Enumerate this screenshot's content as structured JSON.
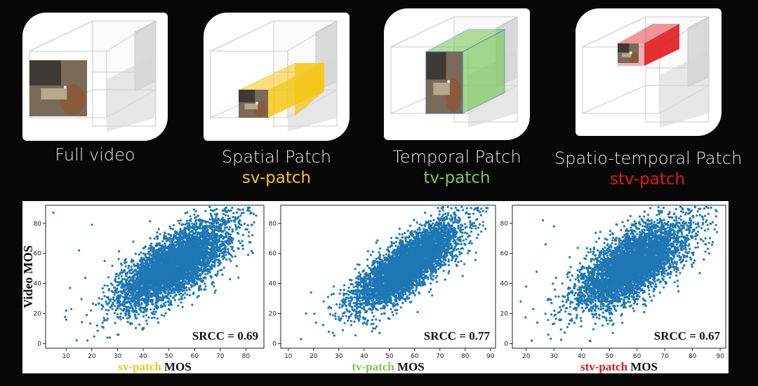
{
  "colors": {
    "sv": "#f5c518",
    "tv": "#7cc95a",
    "stv": "#e0191e",
    "point": "#1f77b4",
    "box_line": "#c9c9c9"
  },
  "panels": [
    {
      "label": "Full video",
      "sublabel": "",
      "patch_color": ""
    },
    {
      "label": "Spatial Patch",
      "sublabel": "sv-patch",
      "patch_color": "#f5c518"
    },
    {
      "label": "Temporal Patch",
      "sublabel": "tv-patch",
      "patch_color": "#7cc95a"
    },
    {
      "label": "Spatio-temporal Patch",
      "sublabel": "stv-patch",
      "patch_color": "#e0191e"
    }
  ],
  "chart_data": [
    {
      "type": "scatter",
      "series_label": "sv-patch",
      "xlabel": "sv-patch MOS",
      "ylabel": "Video MOS",
      "xticks": [
        10,
        20,
        30,
        40,
        50,
        60,
        70,
        80
      ],
      "yticks": [
        0,
        20,
        40,
        60,
        80
      ],
      "xlim": [
        2,
        87
      ],
      "ylim": [
        -3,
        92
      ],
      "srcc": 0.69,
      "annotation": "SRCC = 0.69",
      "cloud": {
        "x_mean": 52,
        "y_mean": 52,
        "x_sd": 10.5,
        "y_sd": 14,
        "r": 0.69,
        "n": 5000
      },
      "outliers": [
        [
          5,
          87
        ],
        [
          10,
          16
        ],
        [
          10,
          22
        ],
        [
          12,
          23
        ],
        [
          15,
          62
        ],
        [
          18,
          19
        ],
        [
          20,
          79
        ],
        [
          22,
          12
        ],
        [
          25,
          55
        ],
        [
          26,
          4
        ],
        [
          28,
          23
        ],
        [
          30,
          6
        ]
      ]
    },
    {
      "type": "scatter",
      "series_label": "tv-patch",
      "xlabel": "tv-patch MOS",
      "ylabel": "",
      "xticks": [
        10,
        20,
        30,
        40,
        50,
        60,
        70,
        80,
        90
      ],
      "yticks": [
        0,
        20,
        40,
        60,
        80
      ],
      "xlim": [
        7,
        92
      ],
      "ylim": [
        -3,
        92
      ],
      "srcc": 0.77,
      "annotation": "SRCC = 0.77",
      "cloud": {
        "x_mean": 57,
        "y_mean": 52,
        "x_sd": 10,
        "y_sd": 14,
        "r": 0.77,
        "n": 5000
      },
      "outliers": [
        [
          15,
          3
        ],
        [
          17,
          20
        ],
        [
          19,
          34
        ],
        [
          21,
          14
        ],
        [
          24,
          28
        ],
        [
          26,
          8
        ],
        [
          28,
          38
        ],
        [
          30,
          16
        ],
        [
          71,
          82
        ],
        [
          79,
          45
        ]
      ]
    },
    {
      "type": "scatter",
      "series_label": "stv-patch",
      "xlabel": "stv-patch MOS",
      "ylabel": "",
      "xticks": [
        20,
        30,
        40,
        50,
        60,
        70,
        80,
        90
      ],
      "yticks": [
        0,
        20,
        40,
        60,
        80
      ],
      "xlim": [
        15,
        92
      ],
      "ylim": [
        -3,
        92
      ],
      "srcc": 0.67,
      "annotation": "SRCC = 0.67",
      "cloud": {
        "x_mean": 58,
        "y_mean": 52,
        "x_sd": 10,
        "y_sd": 14,
        "r": 0.67,
        "n": 5000
      },
      "outliers": [
        [
          18,
          28
        ],
        [
          20,
          38
        ],
        [
          22,
          2
        ],
        [
          24,
          14
        ],
        [
          26,
          82
        ],
        [
          27,
          66
        ],
        [
          28,
          6
        ],
        [
          30,
          78
        ],
        [
          86,
          60
        ],
        [
          88,
          76
        ]
      ]
    }
  ]
}
